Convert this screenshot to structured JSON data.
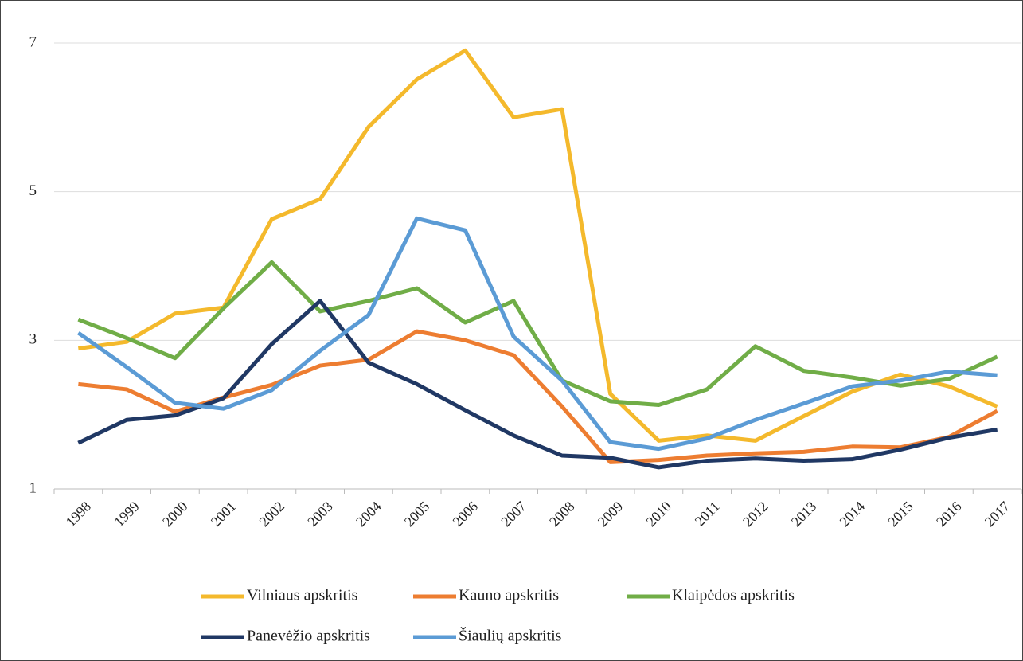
{
  "chart_data": {
    "type": "line",
    "categories": [
      "1998",
      "1999",
      "2000",
      "2001",
      "2002",
      "2003",
      "2004",
      "2005",
      "2006",
      "2007",
      "2008",
      "2009",
      "2010",
      "2011",
      "2012",
      "2013",
      "2014",
      "2015",
      "2016",
      "2017"
    ],
    "series": [
      {
        "name": "Vilniaus apskritis",
        "color": "#f4b92c",
        "values": [
          2.89,
          2.98,
          3.36,
          3.44,
          4.63,
          4.9,
          5.87,
          6.51,
          6.9,
          6.0,
          6.11,
          2.28,
          1.65,
          1.72,
          1.65,
          1.98,
          2.31,
          2.54,
          2.38,
          2.11
        ]
      },
      {
        "name": "Kauno apskritis",
        "color": "#ed7d31",
        "values": [
          2.41,
          2.34,
          2.04,
          2.23,
          2.4,
          2.66,
          2.74,
          3.12,
          3.0,
          2.8,
          2.11,
          1.36,
          1.39,
          1.45,
          1.48,
          1.5,
          1.57,
          1.56,
          1.7,
          2.05
        ]
      },
      {
        "name": "Klaipėdos apskritis",
        "color": "#70ad47",
        "values": [
          3.28,
          3.03,
          2.76,
          3.43,
          4.05,
          3.39,
          3.53,
          3.7,
          3.24,
          3.53,
          2.46,
          2.18,
          2.13,
          2.34,
          2.92,
          2.59,
          2.5,
          2.39,
          2.48,
          2.78
        ]
      },
      {
        "name": "Panevėžio apskritis",
        "color": "#203864",
        "values": [
          1.62,
          1.93,
          1.99,
          2.22,
          2.95,
          3.53,
          2.7,
          2.41,
          2.06,
          1.72,
          1.45,
          1.42,
          1.29,
          1.38,
          1.41,
          1.38,
          1.4,
          1.53,
          1.69,
          1.8
        ]
      },
      {
        "name": "Šiaulių apskritis",
        "color": "#5b9bd5",
        "values": [
          3.1,
          2.64,
          2.16,
          2.08,
          2.33,
          2.86,
          3.34,
          4.64,
          4.48,
          3.05,
          2.46,
          1.63,
          1.54,
          1.68,
          1.93,
          2.15,
          2.38,
          2.46,
          2.58,
          2.53
        ]
      }
    ],
    "ylim": [
      1,
      7
    ],
    "yticks": [
      1,
      3,
      5,
      7
    ],
    "grid": true,
    "legend": "bottom"
  }
}
